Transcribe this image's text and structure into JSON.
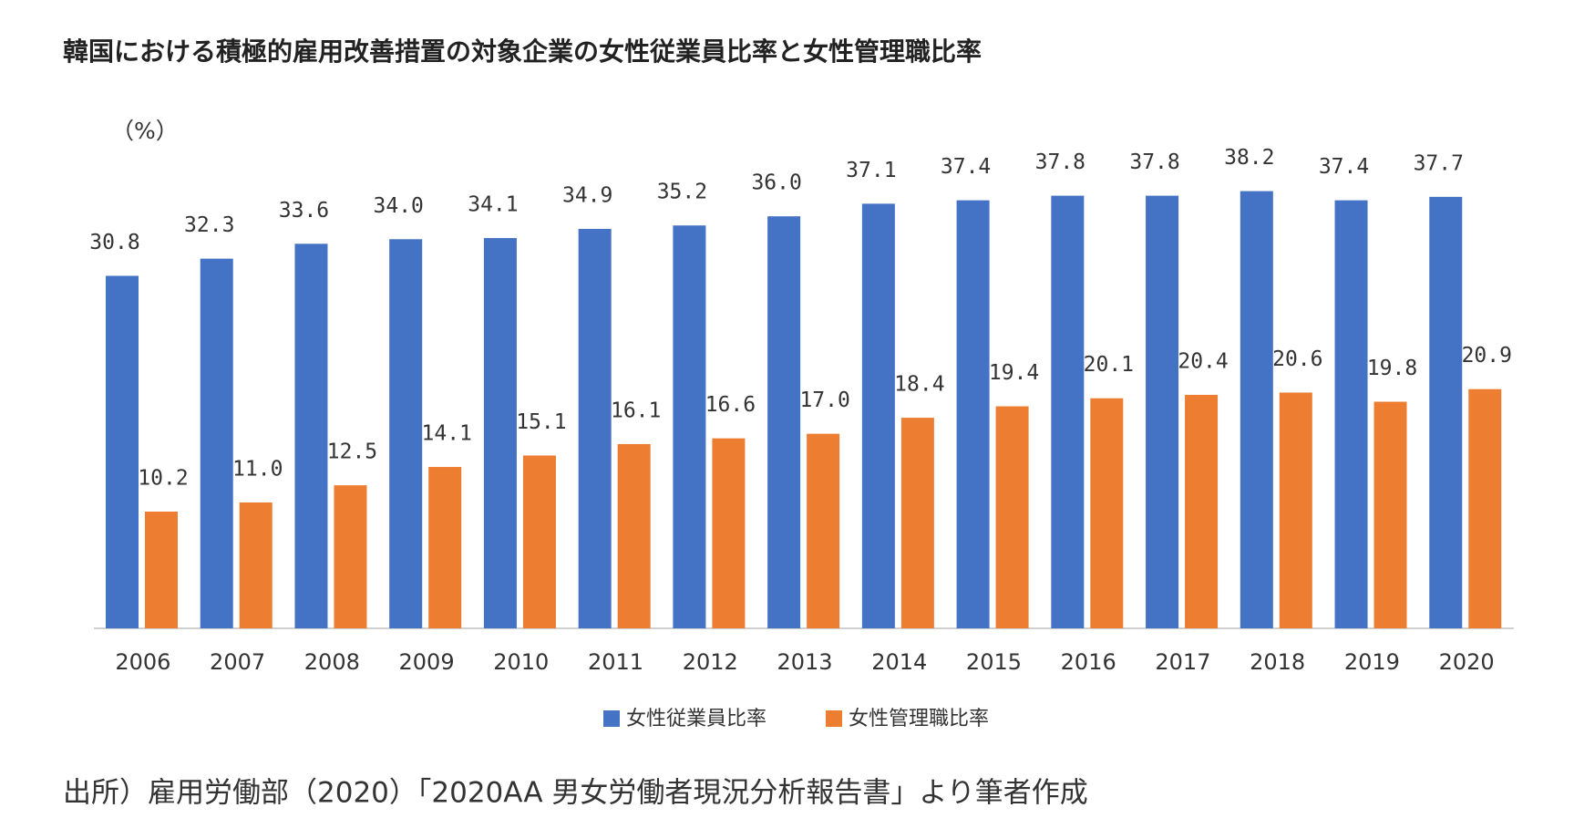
{
  "chart_data": {
    "type": "bar",
    "title": "韓国における積極的雇用改善措置の対象企業の女性従業員比率と女性管理職比率",
    "y_label": "（%）",
    "source": "出所）雇用労働部（2020）「2020AA 男女労働者現況分析報告書」より筆者作成",
    "categories": [
      "2006",
      "2007",
      "2008",
      "2009",
      "2010",
      "2011",
      "2012",
      "2013",
      "2014",
      "2015",
      "2016",
      "2017",
      "2018",
      "2019",
      "2020"
    ],
    "series": [
      {
        "name": "女性従業員比率",
        "color": "#4472c4",
        "values": [
          30.8,
          32.3,
          33.6,
          34.0,
          34.1,
          34.9,
          35.2,
          36.0,
          37.1,
          37.4,
          37.8,
          37.8,
          38.2,
          37.4,
          37.7
        ],
        "value_labels": [
          "30.8",
          "32.3",
          "33.6",
          "34.0",
          "34.1",
          "34.9",
          "35.2",
          "36.0",
          "37.1",
          "37.4",
          "37.8",
          "37.8",
          "38.2",
          "37.4",
          "37.7"
        ]
      },
      {
        "name": "女性管理職比率",
        "color": "#ed7d31",
        "values": [
          10.2,
          11.0,
          12.5,
          14.1,
          15.1,
          16.1,
          16.6,
          17.0,
          18.4,
          19.4,
          20.1,
          20.4,
          20.6,
          19.8,
          20.9
        ],
        "value_labels": [
          "10.2",
          "11.0",
          "12.5",
          "14.1",
          "15.1",
          "16.1",
          "16.6",
          "17.0",
          "18.4",
          "19.4",
          "20.1",
          "20.4",
          "20.6",
          "19.8",
          "20.9"
        ]
      }
    ],
    "ylim": [
      0,
      40
    ],
    "legend": "bottom"
  }
}
